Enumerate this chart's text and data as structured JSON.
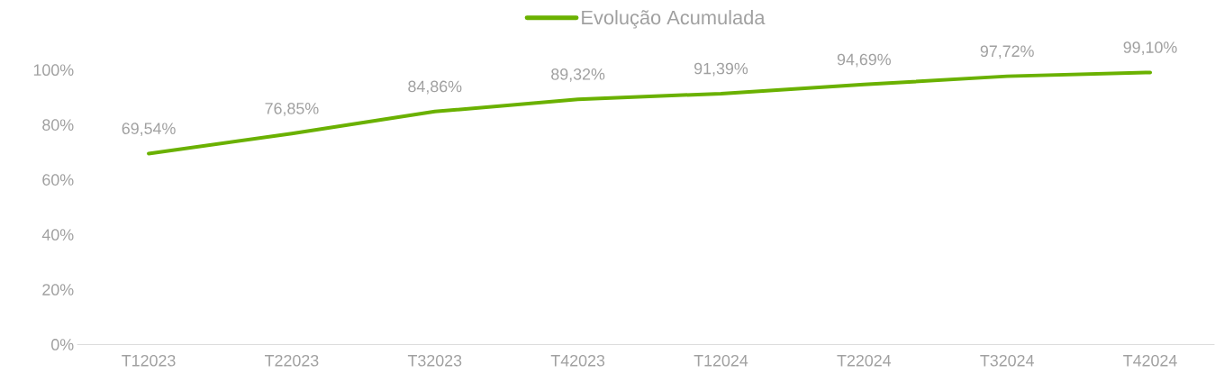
{
  "chart_data": {
    "type": "line",
    "categories": [
      "T12023",
      "T22023",
      "T32023",
      "T42023",
      "T12024",
      "T22024",
      "T32024",
      "T42024"
    ],
    "series": [
      {
        "name": "Evolução Acumulada",
        "color": "#6ab100",
        "values": [
          69.54,
          76.85,
          84.86,
          89.32,
          91.39,
          94.69,
          97.72,
          99.1
        ]
      }
    ],
    "value_labels": [
      "69,54%",
      "76,85%",
      "84,86%",
      "89,32%",
      "91,39%",
      "94,69%",
      "97,72%",
      "99,10%"
    ],
    "ylim": [
      0,
      100
    ],
    "yticks": [
      {
        "value": 0,
        "label": "0%"
      },
      {
        "value": 20,
        "label": "20%"
      },
      {
        "value": 40,
        "label": "40%"
      },
      {
        "value": 60,
        "label": "60%"
      },
      {
        "value": 80,
        "label": "80%"
      },
      {
        "value": 100,
        "label": "100%"
      }
    ],
    "legend": "top",
    "marker": "none",
    "line_style": "solid"
  }
}
